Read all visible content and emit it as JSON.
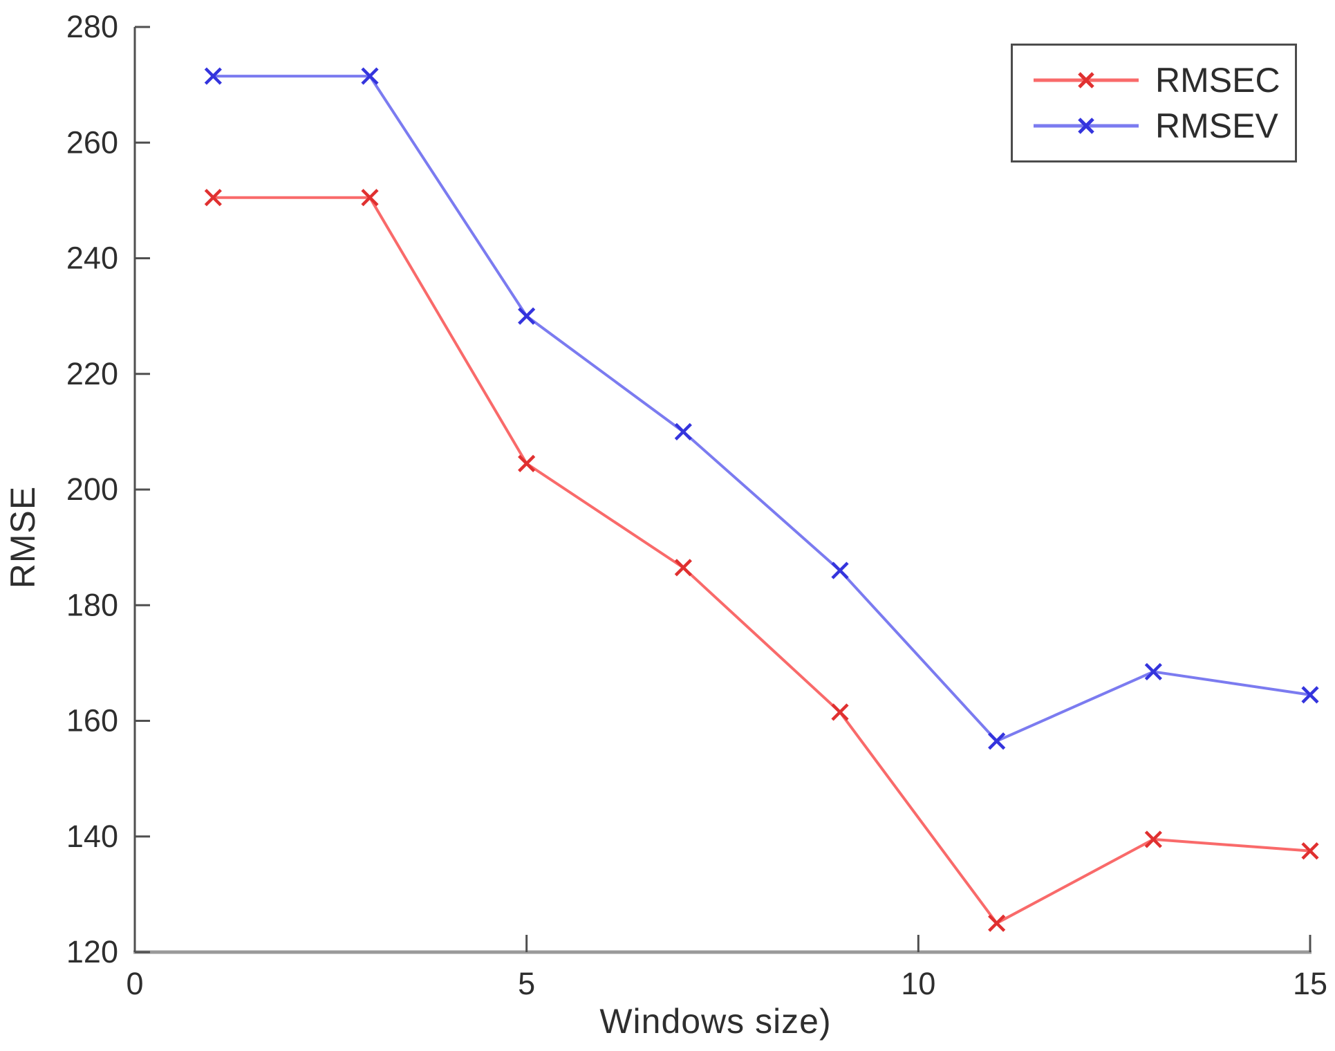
{
  "chart_data": {
    "type": "line",
    "title": "",
    "xlabel": "Windows size)",
    "ylabel": "RMSE",
    "xlim": [
      0,
      15
    ],
    "ylim": [
      120,
      280
    ],
    "xticks": [
      0,
      5,
      10,
      15
    ],
    "yticks": [
      120,
      140,
      160,
      180,
      200,
      220,
      240,
      260,
      280
    ],
    "grid": false,
    "marker": "x",
    "x": [
      1,
      3,
      5,
      7,
      9,
      11,
      13,
      15
    ],
    "series": [
      {
        "name": "RMSEC",
        "color": "#f96a6a",
        "marker_color": "#e03030",
        "values": [
          250.5,
          250.5,
          204.5,
          186.5,
          161.5,
          125,
          139.5,
          137.5
        ]
      },
      {
        "name": "RMSEV",
        "color": "#7b7bf0",
        "marker_color": "#3434dd",
        "values": [
          271.5,
          271.5,
          230,
          210,
          186,
          156.5,
          168.5,
          164.5
        ]
      }
    ],
    "legend_position": "top-right"
  },
  "legend": {
    "entries": [
      "RMSEC",
      "RMSEV"
    ]
  }
}
